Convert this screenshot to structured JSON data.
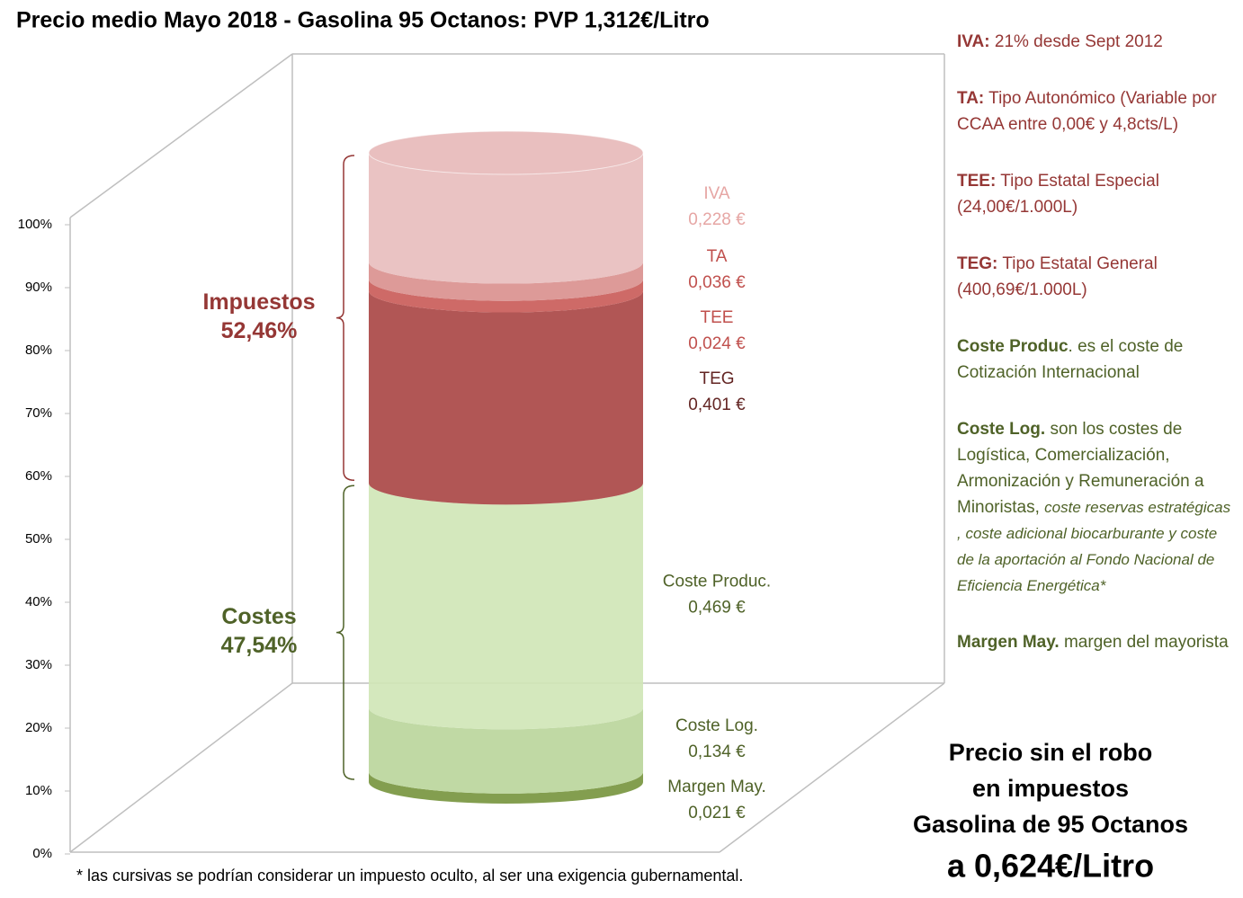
{
  "chart_data": {
    "type": "stacked-cylinder",
    "title": "Precio medio Mayo 2018 - Gasolina 95 Octanos: PVP 1,312€/Litro",
    "ylim": [
      0,
      100
    ],
    "yticks": [
      {
        "value": 0,
        "label": "0%"
      },
      {
        "value": 10,
        "label": "10%"
      },
      {
        "value": 20,
        "label": "20%"
      },
      {
        "value": 30,
        "label": "30%"
      },
      {
        "value": 40,
        "label": "40%"
      },
      {
        "value": 50,
        "label": "50%"
      },
      {
        "value": 60,
        "label": "60%"
      },
      {
        "value": 70,
        "label": "70%"
      },
      {
        "value": 80,
        "label": "80%"
      },
      {
        "value": 90,
        "label": "90%"
      },
      {
        "value": 100,
        "label": "100%"
      }
    ],
    "stack": "percent",
    "series": [
      {
        "name": "Margen May.",
        "color": "#76933c",
        "label_color": "#4f6228",
        "values": [
          0.021
        ],
        "value_labels": [
          "0,021 €"
        ]
      },
      {
        "name": "Coste Log.",
        "color": "#b9d59a",
        "label_color": "#4f6228",
        "values": [
          0.134
        ],
        "value_labels": [
          "0,134 €"
        ]
      },
      {
        "name": "Coste Produc.",
        "color": "#cfe6b6",
        "label_color": "#4f6228",
        "values": [
          0.469
        ],
        "value_labels": [
          "0,469 €"
        ]
      },
      {
        "name": "TEG",
        "color": "#a84442",
        "label_color": "#632523",
        "values": [
          0.401
        ],
        "value_labels": [
          "0,401 €"
        ]
      },
      {
        "name": "TEE",
        "color": "#c95a57",
        "label_color": "#c0504d",
        "values": [
          0.024
        ],
        "value_labels": [
          "0,024 €"
        ]
      },
      {
        "name": "TA",
        "color": "#d98f8d",
        "label_color": "#c0504d",
        "values": [
          0.036
        ],
        "value_labels": [
          "0,036 €"
        ]
      },
      {
        "name": "IVA",
        "color": "#e8bcbc",
        "label_color": "#e6a6a4",
        "values": [
          0.228
        ],
        "value_labels": [
          "0,228 €"
        ]
      }
    ],
    "groups": [
      {
        "name": "Costes",
        "value": 47.54,
        "value_label": "47,54%",
        "color": "#4f6228"
      },
      {
        "name": "Impuestos",
        "value": 52.46,
        "value_label": "52,46%",
        "color": "#953735"
      }
    ]
  },
  "notes": [
    {
      "color": "#953735",
      "parts": [
        {
          "text": "IVA:",
          "style": "bold"
        },
        {
          "text": " 21% desde Sept 2012",
          "style": "normal"
        }
      ]
    },
    {
      "color": "#953735",
      "parts": [
        {
          "text": "TA:",
          "style": "bold"
        },
        {
          "text": " Tipo Autonómico (Variable por CCAA entre 0,00€ y 4,8cts/L)",
          "style": "normal"
        }
      ]
    },
    {
      "color": "#953735",
      "parts": [
        {
          "text": "TEE:",
          "style": "bold"
        },
        {
          "text": " Tipo Estatal Especial (24,00€/1.000L)",
          "style": "normal"
        }
      ]
    },
    {
      "color": "#953735",
      "parts": [
        {
          "text": "TEG:",
          "style": "bold"
        },
        {
          "text": " Tipo Estatal General (400,69€/1.000L)",
          "style": "normal"
        }
      ]
    },
    {
      "color": "#4f6228",
      "parts": [
        {
          "text": "Coste Produc",
          "style": "bold"
        },
        {
          "text": ". es el coste de Cotización Internacional",
          "style": "normal"
        }
      ]
    },
    {
      "color": "#4f6228",
      "parts": [
        {
          "text": "Coste Log.",
          "style": "bold"
        },
        {
          "text": " son los costes de Logística, Comercialización, Armonización y Remuneración a Minoristas, ",
          "style": "normal"
        },
        {
          "text": "coste reservas estratégicas , coste adicional biocarburante y coste de la aportación al Fondo Nacional de Eficiencia Energética*",
          "style": "italic"
        }
      ]
    },
    {
      "color": "#4f6228",
      "parts": [
        {
          "text": "Margen May.",
          "style": "bold"
        },
        {
          "text": " margen del mayorista",
          "style": "normal"
        }
      ]
    }
  ],
  "footnote": "* las cursivas se podrían considerar un impuesto oculto, al ser una exigencia gubernamental.",
  "summary": [
    "Precio sin el robo",
    "en impuestos",
    "Gasolina de 95 Octanos",
    "a 0,624€/Litro"
  ]
}
